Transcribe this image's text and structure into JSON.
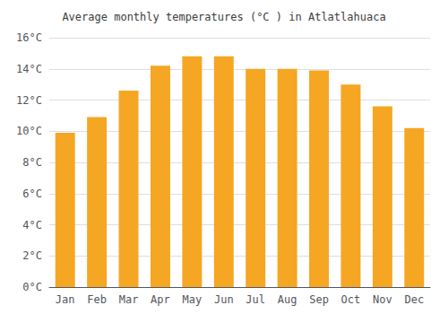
{
  "chart_data": {
    "type": "bar",
    "title": "Average monthly temperatures (°C ) in Atlatlahuaca",
    "categories": [
      "Jan",
      "Feb",
      "Mar",
      "Apr",
      "May",
      "Jun",
      "Jul",
      "Aug",
      "Sep",
      "Oct",
      "Nov",
      "Dec"
    ],
    "values": [
      9.9,
      10.9,
      12.6,
      14.2,
      14.8,
      14.8,
      14.0,
      14.0,
      13.9,
      13.0,
      11.6,
      10.2
    ],
    "color": "#F5A623",
    "ylim": [
      0,
      16
    ],
    "yticks": [
      {
        "value": 0,
        "label": "0°C"
      },
      {
        "value": 2,
        "label": "2°C"
      },
      {
        "value": 4,
        "label": "4°C"
      },
      {
        "value": 6,
        "label": "6°C"
      },
      {
        "value": 8,
        "label": "8°C"
      },
      {
        "value": 10,
        "label": "10°C"
      },
      {
        "value": 12,
        "label": "12°C"
      },
      {
        "value": 14,
        "label": "14°C"
      },
      {
        "value": 16,
        "label": "16°C"
      }
    ],
    "grid": true
  }
}
